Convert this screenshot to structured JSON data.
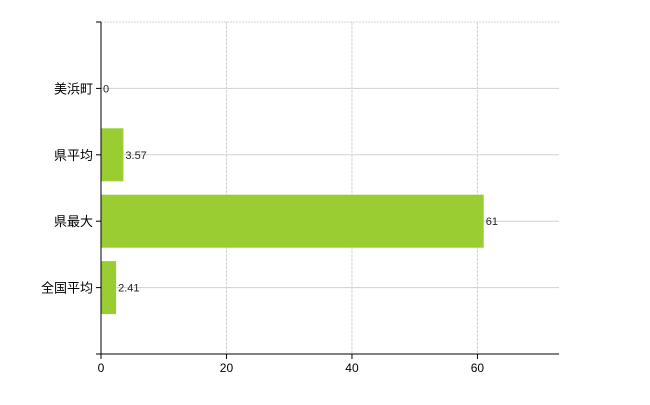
{
  "chart_data": {
    "type": "bar",
    "orientation": "horizontal",
    "categories": [
      "美浜町",
      "県平均",
      "県最大",
      "全国平均"
    ],
    "values": [
      0,
      3.57,
      61,
      2.41
    ],
    "data_labels": [
      "0",
      "3.57",
      "61",
      "2.41"
    ],
    "title": "",
    "xlabel": "",
    "ylabel": "",
    "xlim": [
      0,
      73
    ],
    "xticks": [
      0,
      20,
      40,
      60
    ],
    "xtick_labels": [
      "0",
      "20",
      "40",
      "60"
    ],
    "grid": true,
    "legend": "none",
    "colors": {
      "bar": "#9acd32",
      "grid": "#cfd3d6",
      "axis": "#000000",
      "label": "#222222"
    }
  }
}
